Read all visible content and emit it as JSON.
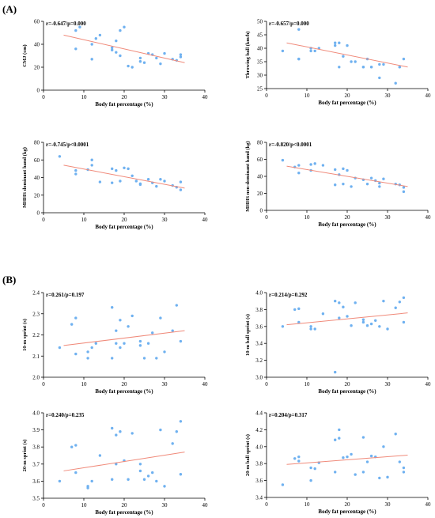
{
  "sections": {
    "a": "(A)",
    "b": "(B)"
  },
  "chart_data": [
    {
      "type": "scatter",
      "stat": "r=-0.647/p=0.000",
      "xlabel": "Body fat percentage (%)",
      "ylabel": "CMJ (cm)",
      "xlim": [
        0,
        40
      ],
      "ylim": [
        0,
        60
      ],
      "xticks": [
        0,
        10,
        20,
        30,
        40
      ],
      "yticks": [
        0,
        20,
        40,
        60
      ],
      "points": [
        [
          8,
          36
        ],
        [
          8,
          52
        ],
        [
          9,
          55
        ],
        [
          12,
          40
        ],
        [
          12,
          27
        ],
        [
          13,
          45
        ],
        [
          14,
          48
        ],
        [
          17,
          35
        ],
        [
          17,
          37
        ],
        [
          18,
          43
        ],
        [
          18,
          33
        ],
        [
          19,
          30
        ],
        [
          19,
          52
        ],
        [
          20,
          55
        ],
        [
          21,
          21
        ],
        [
          22,
          20
        ],
        [
          24,
          28
        ],
        [
          24,
          25
        ],
        [
          25,
          24
        ],
        [
          26,
          32
        ],
        [
          27,
          31
        ],
        [
          28,
          28
        ],
        [
          29,
          23
        ],
        [
          30,
          32
        ],
        [
          32,
          27
        ],
        [
          33,
          26
        ],
        [
          34,
          29
        ],
        [
          34,
          31
        ]
      ],
      "fit": [
        [
          5,
          48
        ],
        [
          35,
          24
        ]
      ],
      "point_color": "#6fb1f0",
      "line_color": "#f08a7a"
    },
    {
      "type": "scatter",
      "stat": "r=-0.657/p=0.000",
      "xlabel": "Body fat percentage (%)",
      "ylabel": "Throwing ball (km/h)",
      "xlim": [
        0,
        40
      ],
      "ylim": [
        25,
        50
      ],
      "xticks": [
        0,
        10,
        20,
        30,
        40
      ],
      "yticks": [
        25,
        30,
        35,
        40,
        45,
        50
      ],
      "points": [
        [
          4,
          39
        ],
        [
          8,
          47
        ],
        [
          8,
          36
        ],
        [
          8,
          36
        ],
        [
          11,
          40
        ],
        [
          11,
          39
        ],
        [
          12,
          39
        ],
        [
          13,
          40
        ],
        [
          17,
          42
        ],
        [
          17,
          41
        ],
        [
          18,
          33
        ],
        [
          18,
          42
        ],
        [
          20,
          41
        ],
        [
          19,
          37
        ],
        [
          21,
          35
        ],
        [
          22,
          35
        ],
        [
          24,
          33
        ],
        [
          24,
          33
        ],
        [
          25,
          36
        ],
        [
          26,
          33
        ],
        [
          26,
          33
        ],
        [
          28,
          34
        ],
        [
          28,
          29
        ],
        [
          29,
          34
        ],
        [
          32,
          27
        ],
        [
          33,
          33
        ],
        [
          33,
          33
        ],
        [
          34,
          36
        ]
      ],
      "fit": [
        [
          5,
          42
        ],
        [
          35,
          33
        ]
      ],
      "point_color": "#6fb1f0",
      "line_color": "#f08a7a"
    },
    {
      "type": "scatter",
      "stat": "r=-0.745/p<0.0001",
      "xlabel": "Body fat percentage (%)",
      "ylabel": "MHHS dominant hand (kg)",
      "xlim": [
        0,
        40
      ],
      "ylim": [
        0,
        80
      ],
      "xticks": [
        0,
        10,
        20,
        30,
        40
      ],
      "yticks": [
        0,
        20,
        40,
        60,
        80
      ],
      "points": [
        [
          4,
          64
        ],
        [
          8,
          48
        ],
        [
          8,
          44
        ],
        [
          11,
          49
        ],
        [
          12,
          60
        ],
        [
          12,
          54
        ],
        [
          14,
          35
        ],
        [
          17,
          50
        ],
        [
          17,
          34
        ],
        [
          18,
          48
        ],
        [
          19,
          36
        ],
        [
          20,
          51
        ],
        [
          21,
          50
        ],
        [
          22,
          42
        ],
        [
          23,
          36
        ],
        [
          24,
          33
        ],
        [
          24,
          32
        ],
        [
          26,
          38
        ],
        [
          27,
          34
        ],
        [
          28,
          30
        ],
        [
          29,
          38
        ],
        [
          30,
          36
        ],
        [
          32,
          31
        ],
        [
          33,
          29
        ],
        [
          34,
          26
        ],
        [
          34,
          35
        ]
      ],
      "fit": [
        [
          5,
          54
        ],
        [
          35,
          28
        ]
      ],
      "point_color": "#6fb1f0",
      "line_color": "#f08a7a"
    },
    {
      "type": "scatter",
      "stat": "r=-0.820/p<0.0001",
      "xlabel": "Body fat percentage (%)",
      "ylabel": "MHHS non-dominant hand (kg)",
      "xlim": [
        0,
        40
      ],
      "ylim": [
        0,
        80
      ],
      "xticks": [
        0,
        10,
        20,
        30,
        40
      ],
      "yticks": [
        0,
        20,
        40,
        60,
        80
      ],
      "points": [
        [
          4,
          59
        ],
        [
          7,
          51
        ],
        [
          8,
          44
        ],
        [
          8,
          53
        ],
        [
          11,
          54
        ],
        [
          11,
          47
        ],
        [
          12,
          55
        ],
        [
          14,
          53
        ],
        [
          17,
          48
        ],
        [
          17,
          30
        ],
        [
          18,
          42
        ],
        [
          19,
          31
        ],
        [
          19,
          49
        ],
        [
          20,
          47
        ],
        [
          21,
          28
        ],
        [
          22,
          38
        ],
        [
          24,
          36
        ],
        [
          25,
          31
        ],
        [
          26,
          38
        ],
        [
          27,
          35
        ],
        [
          28,
          32
        ],
        [
          28,
          28
        ],
        [
          29,
          37
        ],
        [
          32,
          31
        ],
        [
          33,
          30
        ],
        [
          34,
          22
        ],
        [
          34,
          27
        ]
      ],
      "fit": [
        [
          5,
          52
        ],
        [
          35,
          28
        ]
      ],
      "point_color": "#6fb1f0",
      "line_color": "#f08a7a"
    },
    {
      "type": "scatter",
      "stat": "r=0.261/p=0.197",
      "xlabel": "Body fat percentage (%)",
      "ylabel": "10-m sprint (s)",
      "xlim": [
        0,
        40
      ],
      "ylim": [
        2.0,
        2.4
      ],
      "xticks": [
        0,
        10,
        20,
        30,
        40
      ],
      "yticks": [
        2.0,
        2.1,
        2.2,
        2.3,
        2.4
      ],
      "ydecimals": 1,
      "points": [
        [
          4,
          2.14
        ],
        [
          7,
          2.25
        ],
        [
          8,
          2.28
        ],
        [
          8,
          2.11
        ],
        [
          11,
          2.12
        ],
        [
          11,
          2.09
        ],
        [
          12,
          2.14
        ],
        [
          13,
          2.16
        ],
        [
          17,
          2.09
        ],
        [
          17,
          2.33
        ],
        [
          18,
          2.16
        ],
        [
          18,
          2.22
        ],
        [
          19,
          2.27
        ],
        [
          19,
          2.14
        ],
        [
          20,
          2.16
        ],
        [
          21,
          2.24
        ],
        [
          22,
          2.29
        ],
        [
          24,
          2.17
        ],
        [
          24,
          2.15
        ],
        [
          25,
          2.09
        ],
        [
          26,
          2.16
        ],
        [
          27,
          2.21
        ],
        [
          28,
          2.09
        ],
        [
          29,
          2.28
        ],
        [
          30,
          2.12
        ],
        [
          32,
          2.22
        ],
        [
          33,
          2.34
        ],
        [
          34,
          2.17
        ]
      ],
      "fit": [
        [
          5,
          2.15
        ],
        [
          35,
          2.22
        ]
      ],
      "point_color": "#6fb1f0",
      "line_color": "#f08a7a"
    },
    {
      "type": "scatter",
      "stat": "r=0.214/p=0.292",
      "xlabel": "Body fat percentage (%)",
      "ylabel": "10-m ball sprint (s)",
      "xlim": [
        0,
        40
      ],
      "ylim": [
        3.0,
        4.0
      ],
      "xticks": [
        0,
        10,
        20,
        30,
        40
      ],
      "yticks": [
        3.0,
        3.2,
        3.4,
        3.6,
        3.8,
        4.0
      ],
      "ydecimals": 1,
      "points": [
        [
          4,
          3.6
        ],
        [
          7,
          3.8
        ],
        [
          8,
          3.81
        ],
        [
          8,
          3.65
        ],
        [
          11,
          3.57
        ],
        [
          11,
          3.6
        ],
        [
          12,
          3.57
        ],
        [
          14,
          3.75
        ],
        [
          17,
          3.06
        ],
        [
          17,
          3.9
        ],
        [
          18,
          3.88
        ],
        [
          18,
          3.7
        ],
        [
          19,
          3.83
        ],
        [
          20,
          3.72
        ],
        [
          21,
          3.61
        ],
        [
          22,
          3.88
        ],
        [
          24,
          3.65
        ],
        [
          24,
          3.68
        ],
        [
          25,
          3.61
        ],
        [
          26,
          3.63
        ],
        [
          27,
          3.67
        ],
        [
          28,
          3.6
        ],
        [
          29,
          3.9
        ],
        [
          30,
          3.57
        ],
        [
          32,
          3.82
        ],
        [
          33,
          3.89
        ],
        [
          34,
          3.94
        ],
        [
          34,
          3.65
        ]
      ],
      "fit": [
        [
          5,
          3.62
        ],
        [
          35,
          3.76
        ]
      ],
      "point_color": "#6fb1f0",
      "line_color": "#f08a7a"
    },
    {
      "type": "scatter",
      "stat": "r=0.240/p=0.235",
      "xlabel": "Body fat percentage (%)",
      "ylabel": "20-m sprint (s)",
      "xlim": [
        0,
        40
      ],
      "ylim": [
        3.5,
        4.0
      ],
      "xticks": [
        0,
        10,
        20,
        30,
        40
      ],
      "yticks": [
        3.5,
        3.6,
        3.7,
        3.8,
        3.9,
        4.0
      ],
      "ydecimals": 1,
      "points": [
        [
          4,
          3.6
        ],
        [
          7,
          3.8
        ],
        [
          8,
          3.81
        ],
        [
          8,
          3.65
        ],
        [
          11,
          3.57
        ],
        [
          11,
          3.56
        ],
        [
          12,
          3.6
        ],
        [
          14,
          3.75
        ],
        [
          17,
          3.61
        ],
        [
          17,
          3.91
        ],
        [
          18,
          3.87
        ],
        [
          18,
          3.7
        ],
        [
          19,
          3.89
        ],
        [
          20,
          3.72
        ],
        [
          21,
          3.61
        ],
        [
          22,
          3.88
        ],
        [
          24,
          3.66
        ],
        [
          24,
          3.7
        ],
        [
          25,
          3.61
        ],
        [
          26,
          3.63
        ],
        [
          27,
          3.65
        ],
        [
          28,
          3.6
        ],
        [
          29,
          3.9
        ],
        [
          30,
          3.57
        ],
        [
          32,
          3.82
        ],
        [
          33,
          3.89
        ],
        [
          34,
          3.95
        ],
        [
          34,
          3.64
        ]
      ],
      "fit": [
        [
          5,
          3.66
        ],
        [
          35,
          3.77
        ]
      ],
      "point_color": "#6fb1f0",
      "line_color": "#f08a7a"
    },
    {
      "type": "scatter",
      "stat": "r=0.204/p=0.317",
      "xlabel": "Body fat percentage (%)",
      "ylabel": "20-m ball sprint (s)",
      "xlim": [
        0,
        40
      ],
      "ylim": [
        3.4,
        4.4
      ],
      "xticks": [
        0,
        10,
        20,
        30,
        40
      ],
      "yticks": [
        3.4,
        3.6,
        3.8,
        4.0,
        4.2,
        4.4
      ],
      "ydecimals": 1,
      "points": [
        [
          4,
          3.55
        ],
        [
          7,
          3.86
        ],
        [
          8,
          3.88
        ],
        [
          8,
          3.83
        ],
        [
          11,
          3.75
        ],
        [
          11,
          3.6
        ],
        [
          12,
          3.74
        ],
        [
          13,
          3.81
        ],
        [
          17,
          3.7
        ],
        [
          17,
          4.08
        ],
        [
          18,
          4.2
        ],
        [
          18,
          4.1
        ],
        [
          19,
          3.87
        ],
        [
          20,
          3.88
        ],
        [
          21,
          3.91
        ],
        [
          22,
          3.67
        ],
        [
          24,
          4.11
        ],
        [
          24,
          3.7
        ],
        [
          25,
          3.82
        ],
        [
          26,
          3.89
        ],
        [
          27,
          3.88
        ],
        [
          28,
          3.63
        ],
        [
          29,
          4.0
        ],
        [
          30,
          3.64
        ],
        [
          32,
          4.15
        ],
        [
          33,
          3.82
        ],
        [
          34,
          3.75
        ],
        [
          34,
          3.7
        ]
      ],
      "fit": [
        [
          5,
          3.79
        ],
        [
          35,
          3.9
        ]
      ],
      "point_color": "#6fb1f0",
      "line_color": "#f08a7a"
    }
  ]
}
